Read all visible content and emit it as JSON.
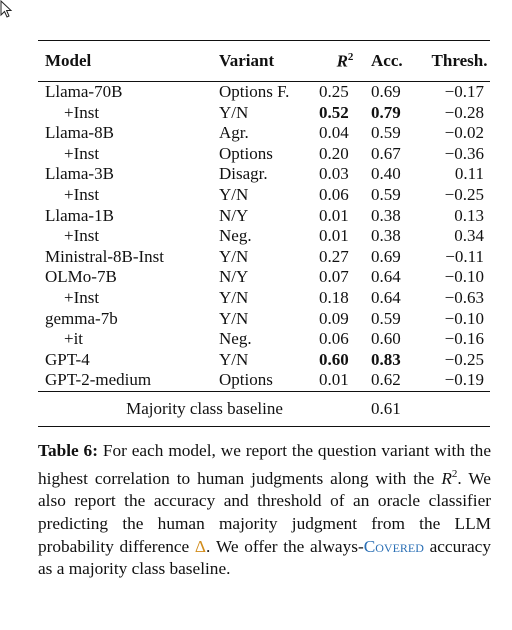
{
  "table": {
    "headers": {
      "model": "Model",
      "variant": "Variant",
      "r2_base": "R",
      "r2_exp": "2",
      "acc": "Acc.",
      "thresh": "Thresh."
    },
    "rows": [
      {
        "model": "Llama-70B",
        "variant": "Options F.",
        "r2": "0.25",
        "acc": "0.69",
        "thresh": "−0.17",
        "indent": false,
        "bold_r2": false,
        "bold_acc": false
      },
      {
        "model": "+Inst",
        "variant": "Y/N",
        "r2": "0.52",
        "acc": "0.79",
        "thresh": "−0.28",
        "indent": true,
        "bold_r2": true,
        "bold_acc": true
      },
      {
        "model": "Llama-8B",
        "variant": "Agr.",
        "r2": "0.04",
        "acc": "0.59",
        "thresh": "−0.02",
        "indent": false,
        "bold_r2": false,
        "bold_acc": false
      },
      {
        "model": "+Inst",
        "variant": "Options",
        "r2": "0.20",
        "acc": "0.67",
        "thresh": "−0.36",
        "indent": true,
        "bold_r2": false,
        "bold_acc": false
      },
      {
        "model": "Llama-3B",
        "variant": "Disagr.",
        "r2": "0.03",
        "acc": "0.40",
        "thresh": "0.11",
        "indent": false,
        "bold_r2": false,
        "bold_acc": false
      },
      {
        "model": "+Inst",
        "variant": "Y/N",
        "r2": "0.06",
        "acc": "0.59",
        "thresh": "−0.25",
        "indent": true,
        "bold_r2": false,
        "bold_acc": false
      },
      {
        "model": "Llama-1B",
        "variant": "N/Y",
        "r2": "0.01",
        "acc": "0.38",
        "thresh": "0.13",
        "indent": false,
        "bold_r2": false,
        "bold_acc": false
      },
      {
        "model": "+Inst",
        "variant": "Neg.",
        "r2": "0.01",
        "acc": "0.38",
        "thresh": "0.34",
        "indent": true,
        "bold_r2": false,
        "bold_acc": false
      },
      {
        "model": "Ministral-8B-Inst",
        "variant": "Y/N",
        "r2": "0.27",
        "acc": "0.69",
        "thresh": "−0.11",
        "indent": false,
        "bold_r2": false,
        "bold_acc": false
      },
      {
        "model": "OLMo-7B",
        "variant": "N/Y",
        "r2": "0.07",
        "acc": "0.64",
        "thresh": "−0.10",
        "indent": false,
        "bold_r2": false,
        "bold_acc": false
      },
      {
        "model": "+Inst",
        "variant": "Y/N",
        "r2": "0.18",
        "acc": "0.64",
        "thresh": "−0.63",
        "indent": true,
        "bold_r2": false,
        "bold_acc": false
      },
      {
        "model": "gemma-7b",
        "variant": "Y/N",
        "r2": "0.09",
        "acc": "0.59",
        "thresh": "−0.10",
        "indent": false,
        "bold_r2": false,
        "bold_acc": false
      },
      {
        "model": "+it",
        "variant": "Neg.",
        "r2": "0.06",
        "acc": "0.60",
        "thresh": "−0.16",
        "indent": true,
        "bold_r2": false,
        "bold_acc": false
      },
      {
        "model": "GPT-4",
        "variant": "Y/N",
        "r2": "0.60",
        "acc": "0.83",
        "thresh": "−0.25",
        "indent": false,
        "bold_r2": true,
        "bold_acc": true
      },
      {
        "model": "GPT-2-medium",
        "variant": "Options",
        "r2": "0.01",
        "acc": "0.62",
        "thresh": "−0.19",
        "indent": false,
        "bold_r2": false,
        "bold_acc": false
      }
    ],
    "baseline": {
      "label": "Majority class baseline",
      "acc": "0.61"
    }
  },
  "caption": {
    "label": "Table 6:",
    "t1": " For each model, we report the question variant with the highest correlation to human judgments along with the ",
    "r2_base": "R",
    "r2_exp": "2",
    "t2": ". We also report the accuracy and threshold of an oracle classifier predicting the human majority judgment from the LLM probability difference ",
    "delta": "Δ",
    "t3": ". We offer the always-",
    "covered": "Covered",
    "t4": " accuracy as a majority class baseline."
  },
  "colors": {
    "delta": "#d18b19",
    "covered": "#2a6fb5"
  },
  "icons": {
    "cursor": "mouse-pointer-icon"
  }
}
